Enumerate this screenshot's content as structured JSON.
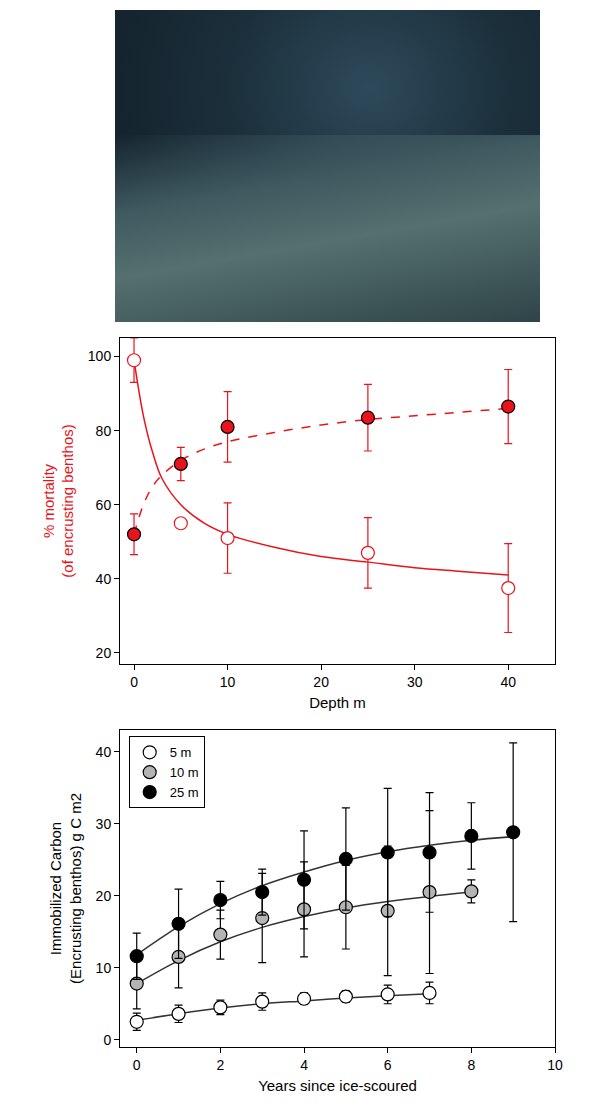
{
  "chart_data": [
    {
      "type": "scatter",
      "x_label": "Depth m",
      "y_label": "% mortality\n(of encrusting benthos)",
      "xlim": [
        -1.5,
        45
      ],
      "xticks": [
        0,
        10,
        20,
        30,
        40
      ],
      "ylim": [
        17,
        105
      ],
      "yticks": [
        20,
        40,
        60,
        80,
        100
      ],
      "series": [
        {
          "type": "scatter",
          "marker": "circle-open",
          "color": "#e8141c",
          "x": [
            0,
            5,
            10,
            25,
            40
          ],
          "values": [
            99,
            55,
            51,
            47,
            37.5
          ],
          "errors": [
            6,
            0,
            9.5,
            9.5,
            12
          ]
        },
        {
          "type": "line",
          "line_style": "solid",
          "color": "#e8141c",
          "x": [
            0,
            1,
            2,
            3,
            5,
            7.5,
            10,
            15,
            20,
            25,
            30,
            35,
            40
          ],
          "values": [
            99,
            84,
            74,
            67,
            60,
            55,
            52,
            48.5,
            46,
            44.5,
            43,
            42,
            41
          ]
        },
        {
          "type": "scatter",
          "marker": "circle",
          "color": "#e8141c",
          "x": [
            0,
            5,
            10,
            25,
            40
          ],
          "values": [
            52,
            71,
            81,
            83.5,
            86.5
          ],
          "errors": [
            5.5,
            4.5,
            9.5,
            9,
            10
          ]
        },
        {
          "type": "line",
          "line_style": "dashed",
          "color": "#e8141c",
          "x": [
            0,
            1,
            2,
            3,
            5,
            7.5,
            10,
            15,
            20,
            25,
            30,
            35,
            40
          ],
          "values": [
            52,
            60,
            65,
            68,
            72,
            75,
            77,
            79.5,
            81.5,
            83,
            84,
            85,
            86
          ]
        }
      ]
    },
    {
      "type": "scatter",
      "x_label": "Years since ice-scoured",
      "y_label": "Immobilized Carbon\n(Encrusting benthos) g C m2",
      "xlim": [
        -0.4,
        10
      ],
      "xticks": [
        0,
        2,
        4,
        6,
        8,
        10
      ],
      "ylim": [
        -1,
        43
      ],
      "yticks": [
        0,
        10,
        20,
        30,
        40
      ],
      "legend": "upper left",
      "series": [
        {
          "type": "line",
          "line_style": "solid",
          "color": "#333333",
          "x": [
            0,
            1,
            2,
            3,
            4,
            5,
            6,
            7
          ],
          "values": [
            2.7,
            3.6,
            4.4,
            5.0,
            5.4,
            5.8,
            6.1,
            6.4
          ]
        },
        {
          "type": "line",
          "line_style": "solid",
          "color": "#333333",
          "x": [
            0,
            1,
            2,
            3,
            4,
            5,
            6,
            7,
            8
          ],
          "values": [
            7.8,
            11.0,
            13.6,
            15.6,
            17.1,
            18.3,
            19.2,
            19.9,
            20.5
          ]
        },
        {
          "type": "line",
          "line_style": "solid",
          "color": "#333333",
          "x": [
            0,
            1,
            2,
            3,
            4,
            5,
            6,
            7,
            8,
            9
          ],
          "values": [
            11.8,
            15.7,
            18.9,
            21.4,
            23.3,
            24.9,
            26.1,
            27.0,
            27.7,
            28.2
          ]
        },
        {
          "name": "5 m",
          "type": "scatter",
          "marker": "circle",
          "color": "#ffffff",
          "x": [
            0,
            1,
            2,
            3,
            4,
            5,
            6,
            7
          ],
          "values": [
            2.5,
            3.6,
            4.5,
            5.3,
            5.7,
            6.0,
            6.3,
            6.5
          ],
          "errors": [
            1.2,
            1.2,
            1.0,
            1.2,
            0.8,
            0.8,
            1.3,
            1.5
          ]
        },
        {
          "name": "10 m",
          "type": "scatter",
          "marker": "circle",
          "color": "#b4b4b4",
          "x": [
            0,
            1,
            2,
            3,
            4,
            5,
            6,
            7,
            8
          ],
          "values": [
            7.8,
            11.5,
            14.6,
            16.9,
            18.1,
            18.4,
            17.9,
            20.5,
            20.6
          ],
          "errors": [
            3.5,
            4.3,
            3.4,
            6.2,
            6.6,
            5.8,
            9,
            11.3,
            1.6
          ]
        },
        {
          "name": "25 m",
          "type": "scatter",
          "marker": "circle",
          "color": "#000000",
          "x": [
            0,
            1,
            2,
            3,
            4,
            5,
            6,
            7,
            8,
            9
          ],
          "values": [
            11.6,
            16.1,
            19.4,
            20.5,
            22.2,
            25.1,
            26.0,
            26.0,
            28.3,
            28.8
          ],
          "errors": [
            3.2,
            4.8,
            2.6,
            3.2,
            6.8,
            7.1,
            8.9,
            8.3,
            4.6,
            12.4
          ]
        }
      ]
    }
  ]
}
